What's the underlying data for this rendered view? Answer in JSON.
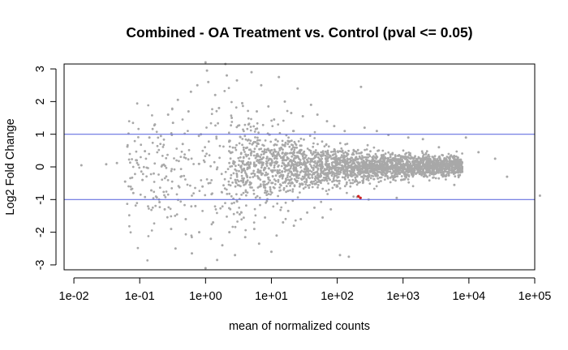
{
  "chart_data": {
    "type": "scatter",
    "title": "Combined - OA Treatment vs. Control  (pval <= 0.05)",
    "xlabel": "mean of normalized counts",
    "ylabel": "Log2 Fold Change",
    "x_scale": "log10",
    "xlim": [
      0.0071,
      100000
    ],
    "ylim": [
      -3.15,
      3.15
    ],
    "x_ticks": [
      0.01,
      0.1,
      1,
      10,
      100,
      1000,
      10000,
      100000
    ],
    "x_tick_labels": [
      "1e-02",
      "1e-01",
      "1e+00",
      "1e+01",
      "1e+02",
      "1e+03",
      "1e+04",
      "1e+05"
    ],
    "y_ticks": [
      -3,
      -2,
      -1,
      0,
      1,
      2,
      3
    ],
    "y_tick_labels": [
      "-3",
      "-2",
      "-1",
      "0",
      "1",
      "2",
      "3"
    ],
    "hlines": [
      1,
      -1
    ],
    "hline_color": "#6670e0",
    "point_color": "#a8a8a8",
    "highlight_color": "#cc2222",
    "series": [
      {
        "points": [
          [
            0.013,
            0.05
          ],
          [
            0.031,
            0.08
          ],
          [
            0.045,
            0.12
          ],
          [
            0.06,
            -0.45
          ],
          [
            0.065,
            0.62
          ],
          [
            0.08,
            -0.8
          ],
          [
            0.09,
            0.2
          ],
          [
            0.11,
            -0.4
          ],
          [
            0.12,
            0.48
          ],
          [
            0.14,
            0.9
          ],
          [
            0.15,
            -0.72
          ],
          [
            0.17,
            1.3
          ],
          [
            0.2,
            -1.08
          ],
          [
            0.22,
            0.05
          ],
          [
            0.24,
            -1.3
          ],
          [
            0.27,
            1.6
          ],
          [
            0.3,
            -1.9
          ],
          [
            0.32,
            1.35
          ],
          [
            0.35,
            -2.5
          ],
          [
            0.38,
            2.05
          ],
          [
            0.42,
            -0.3
          ],
          [
            0.45,
            0.7
          ],
          [
            0.5,
            -1.6
          ],
          [
            0.55,
            1.7
          ],
          [
            0.6,
            2.3
          ],
          [
            0.62,
            -2.65
          ],
          [
            0.7,
            -1.2
          ],
          [
            0.75,
            2.5
          ],
          [
            0.8,
            -2.0
          ],
          [
            0.85,
            1.0
          ],
          [
            0.9,
            -0.6
          ],
          [
            1.0,
            3.2
          ],
          [
            1.0,
            -3.1
          ],
          [
            1.05,
            2.95
          ],
          [
            1.1,
            2.6
          ],
          [
            1.2,
            -2.2
          ],
          [
            1.3,
            -1.7
          ],
          [
            1.4,
            2.2
          ],
          [
            1.5,
            -2.85
          ],
          [
            1.6,
            1.8
          ],
          [
            1.8,
            -2.4
          ],
          [
            2.0,
            3.15
          ],
          [
            2.1,
            2.8
          ],
          [
            2.3,
            -2.0
          ],
          [
            2.5,
            1.5
          ],
          [
            2.8,
            -2.7
          ],
          [
            3.0,
            2.65
          ],
          [
            3.3,
            -1.45
          ],
          [
            3.6,
            1.95
          ],
          [
            4.0,
            -2.15
          ],
          [
            4.5,
            1.3
          ],
          [
            5.0,
            2.9
          ],
          [
            5.5,
            -1.9
          ],
          [
            6.0,
            1.7
          ],
          [
            6.5,
            -2.35
          ],
          [
            7.0,
            2.5
          ],
          [
            8.0,
            -1.55
          ],
          [
            9.0,
            1.85
          ],
          [
            10.0,
            -2.6
          ],
          [
            11.0,
            1.45
          ],
          [
            12.0,
            -2.1
          ],
          [
            13.0,
            2.75
          ],
          [
            15.0,
            -1.7
          ],
          [
            16.0,
            2.0
          ],
          [
            18.0,
            -1.35
          ],
          [
            20.0,
            1.65
          ],
          [
            22.0,
            -1.8
          ],
          [
            25.0,
            2.4
          ],
          [
            28.0,
            -1.6
          ],
          [
            30.0,
            1.55
          ],
          [
            35.0,
            -1.4
          ],
          [
            40.0,
            1.9
          ],
          [
            45.0,
            -1.25
          ],
          [
            50.0,
            1.6
          ],
          [
            60.0,
            -1.55
          ],
          [
            70.0,
            1.4
          ],
          [
            80.0,
            -1.3
          ],
          [
            90.0,
            1.25
          ],
          [
            110.0,
            -2.7
          ],
          [
            130.0,
            1.1
          ],
          [
            150.0,
            -2.75
          ],
          [
            200.0,
            -0.92
          ],
          [
            230.0,
            2.45
          ],
          [
            260.0,
            1.2
          ],
          [
            300.0,
            -1.0
          ],
          [
            400.0,
            1.1
          ],
          [
            600.0,
            0.98
          ],
          [
            800.0,
            -0.95
          ],
          [
            1200.0,
            0.9
          ],
          [
            2000.0,
            0.85
          ],
          [
            3500.0,
            0.6
          ],
          [
            6000.0,
            -0.55
          ],
          [
            9000.0,
            0.9
          ],
          [
            14000.0,
            0.45
          ],
          [
            25000.0,
            0.25
          ],
          [
            38000.0,
            -0.3
          ],
          [
            120000.0,
            -0.88
          ]
        ],
        "highlight_points": [
          [
            210.0,
            -0.9
          ],
          [
            225.0,
            -0.95
          ]
        ]
      }
    ]
  }
}
